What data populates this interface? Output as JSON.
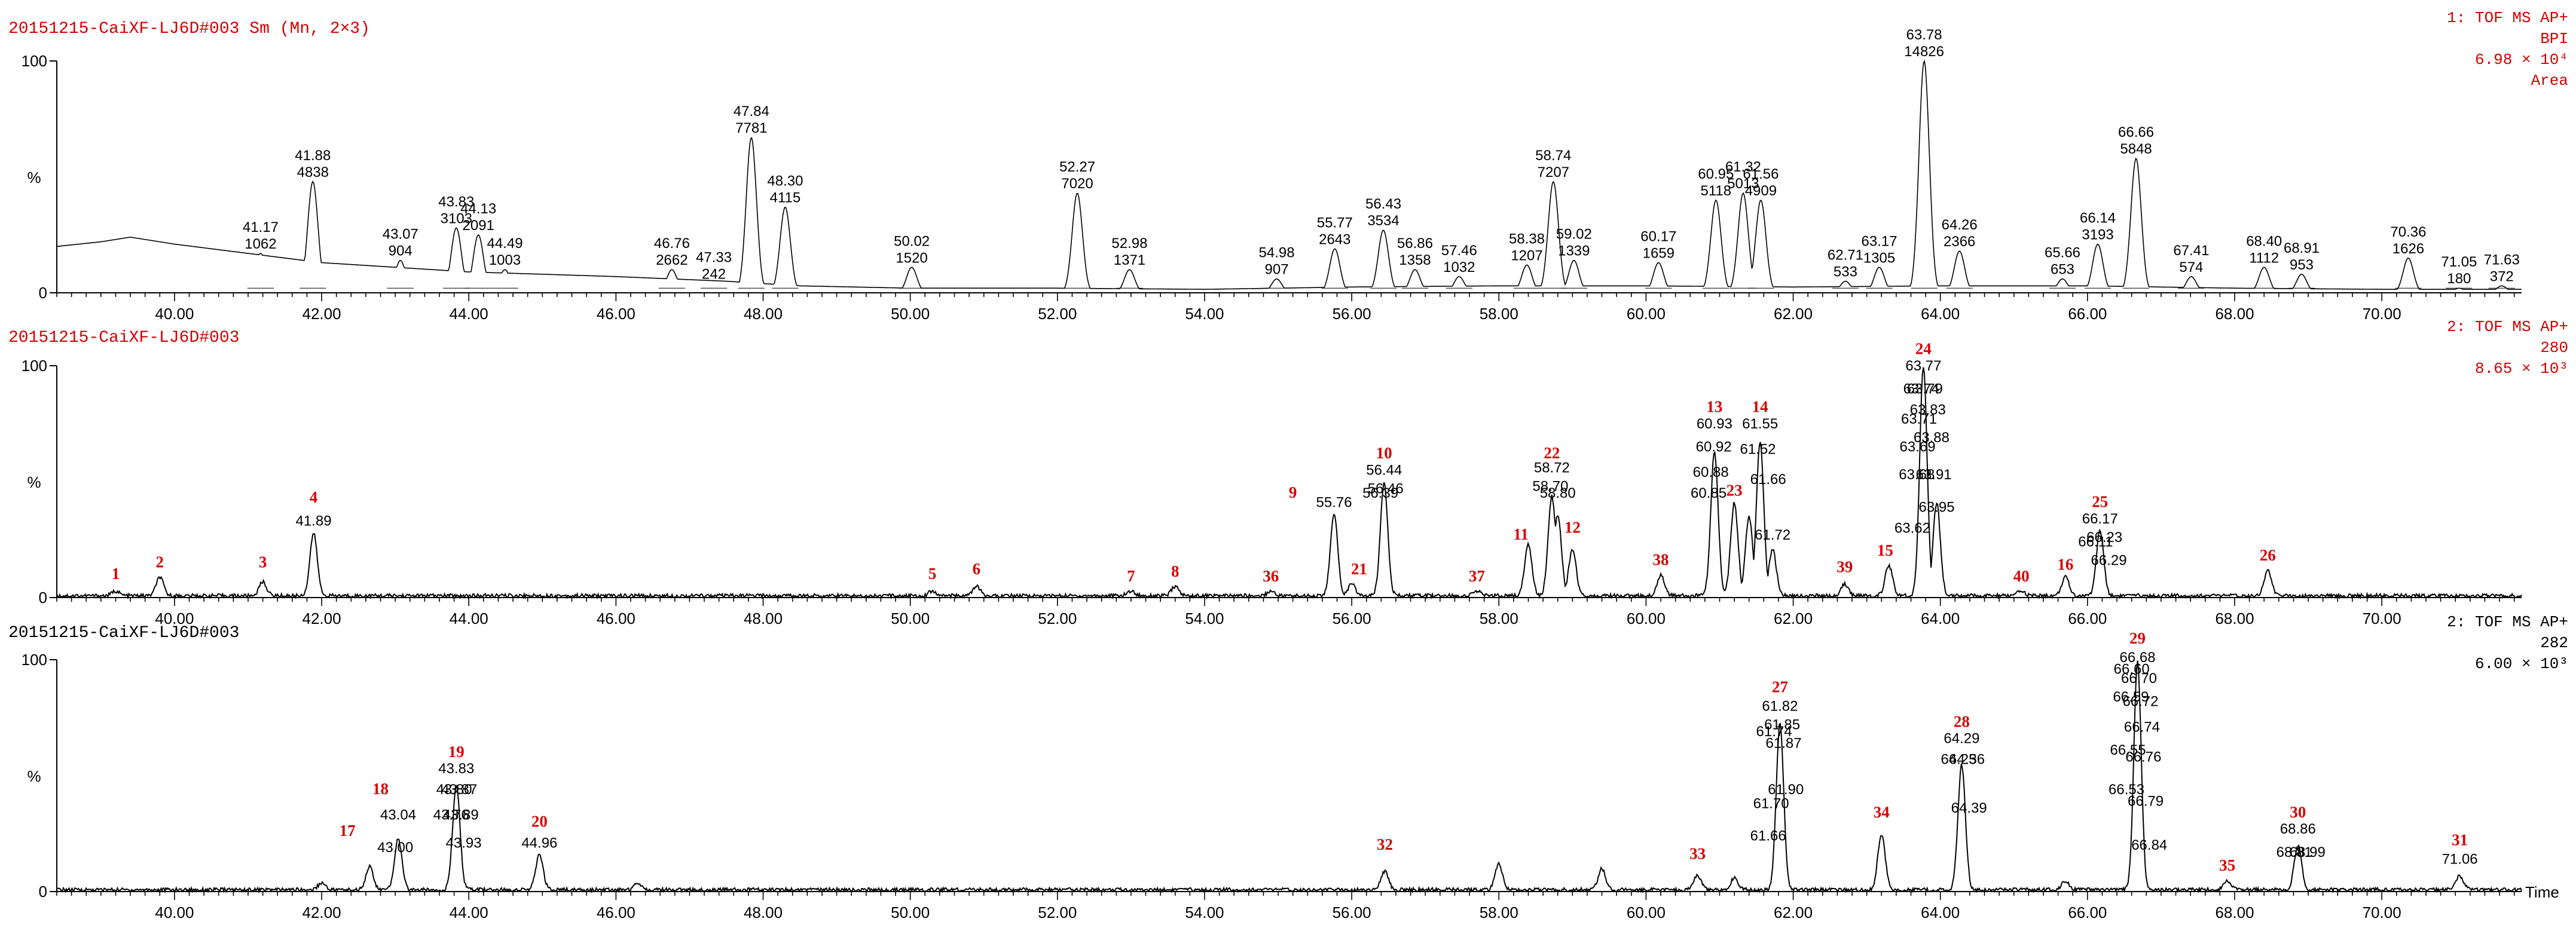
{
  "chart_data": [
    {
      "type": "line",
      "title_left": "20151215-CaiXF-LJ6D#003 Sm (Mn, 2×3)",
      "title_right": [
        "1: TOF MS AP+",
        "BPI",
        "6.98 × 10⁴",
        "Area"
      ],
      "ylabel": "%",
      "y_ticks": [
        "100",
        "0"
      ],
      "xlim": [
        38.4,
        71.9
      ],
      "ylim": [
        0,
        100
      ],
      "x_ticks": [
        "40.00",
        "42.00",
        "44.00",
        "46.00",
        "48.00",
        "50.00",
        "52.00",
        "54.00",
        "56.00",
        "58.00",
        "60.00",
        "62.00",
        "64.00",
        "66.00",
        "68.00",
        "70.00"
      ],
      "peaks": [
        {
          "rt": "41.17",
          "area": "1062",
          "x": 41.17,
          "y": 17
        },
        {
          "rt": "41.88",
          "area": "4838",
          "x": 41.88,
          "y": 48
        },
        {
          "rt": "43.07",
          "area": "904",
          "x": 43.07,
          "y": 14
        },
        {
          "rt": "43.83",
          "area": "3103",
          "x": 43.83,
          "y": 28
        },
        {
          "rt": "44.13",
          "area": "2091",
          "x": 44.13,
          "y": 25
        },
        {
          "rt": "44.49",
          "area": "1003",
          "x": 44.49,
          "y": 10
        },
        {
          "rt": "46.76",
          "area": "2662",
          "x": 46.76,
          "y": 10
        },
        {
          "rt": "47.33",
          "area": "242",
          "x": 47.33,
          "y": 4
        },
        {
          "rt": "47.84",
          "area": "7781",
          "x": 47.84,
          "y": 67
        },
        {
          "rt": "48.30",
          "area": "4115",
          "x": 48.3,
          "y": 37
        },
        {
          "rt": "50.02",
          "area": "1520",
          "x": 50.02,
          "y": 11
        },
        {
          "rt": "52.27",
          "area": "7020",
          "x": 52.27,
          "y": 43
        },
        {
          "rt": "52.98",
          "area": "1371",
          "x": 52.98,
          "y": 10
        },
        {
          "rt": "54.98",
          "area": "907",
          "x": 54.98,
          "y": 6
        },
        {
          "rt": "55.77",
          "area": "2643",
          "x": 55.77,
          "y": 19
        },
        {
          "rt": "56.43",
          "area": "3534",
          "x": 56.43,
          "y": 27
        },
        {
          "rt": "56.86",
          "area": "1358",
          "x": 56.86,
          "y": 10
        },
        {
          "rt": "57.46",
          "area": "1032",
          "x": 57.46,
          "y": 7
        },
        {
          "rt": "58.38",
          "area": "1207",
          "x": 58.38,
          "y": 12
        },
        {
          "rt": "58.74",
          "area": "7207",
          "x": 58.74,
          "y": 48
        },
        {
          "rt": "59.02",
          "area": "1339",
          "x": 59.02,
          "y": 14
        },
        {
          "rt": "60.17",
          "area": "1659",
          "x": 60.17,
          "y": 13
        },
        {
          "rt": "60.95",
          "area": "5118",
          "x": 60.95,
          "y": 40
        },
        {
          "rt": "61.32",
          "area": "5013",
          "x": 61.32,
          "y": 43
        },
        {
          "rt": "61.56",
          "area": "4909",
          "x": 61.56,
          "y": 40
        },
        {
          "rt": "62.71",
          "area": "533",
          "x": 62.71,
          "y": 5
        },
        {
          "rt": "63.17",
          "area": "1305",
          "x": 63.17,
          "y": 11
        },
        {
          "rt": "63.78",
          "area": "14826",
          "x": 63.78,
          "y": 100
        },
        {
          "rt": "64.26",
          "area": "2366",
          "x": 64.26,
          "y": 18
        },
        {
          "rt": "65.66",
          "area": "653",
          "x": 65.66,
          "y": 6
        },
        {
          "rt": "66.14",
          "area": "3193",
          "x": 66.14,
          "y": 21
        },
        {
          "rt": "66.66",
          "area": "5848",
          "x": 66.66,
          "y": 58
        },
        {
          "rt": "67.41",
          "area": "574",
          "x": 67.41,
          "y": 7
        },
        {
          "rt": "68.40",
          "area": "1112",
          "x": 68.4,
          "y": 11
        },
        {
          "rt": "68.91",
          "area": "953",
          "x": 68.91,
          "y": 8
        },
        {
          "rt": "70.36",
          "area": "1626",
          "x": 70.36,
          "y": 15
        },
        {
          "rt": "71.05",
          "area": "180",
          "x": 71.05,
          "y": 2
        },
        {
          "rt": "71.63",
          "area": "372",
          "x": 71.63,
          "y": 3
        }
      ],
      "baseline": [
        [
          38.4,
          20
        ],
        [
          39.0,
          22
        ],
        [
          39.4,
          24
        ],
        [
          40.0,
          21
        ],
        [
          41.0,
          17
        ],
        [
          42.0,
          13
        ],
        [
          44.0,
          9
        ],
        [
          46.0,
          7
        ],
        [
          47.5,
          5
        ],
        [
          48.5,
          3
        ],
        [
          50.0,
          2
        ],
        [
          52.0,
          2
        ],
        [
          54.0,
          1.5
        ],
        [
          56.0,
          2.5
        ],
        [
          58.0,
          3
        ],
        [
          60.0,
          3
        ],
        [
          62.0,
          2.5
        ],
        [
          64.0,
          3
        ],
        [
          66.0,
          3
        ],
        [
          68.0,
          2
        ],
        [
          70.0,
          1.5
        ],
        [
          71.9,
          1.5
        ]
      ]
    },
    {
      "type": "line",
      "title_left": "20151215-CaiXF-LJ6D#003",
      "title_right": [
        "2: TOF MS AP+",
        "280",
        "8.65 × 10³"
      ],
      "ylabel": "%",
      "y_ticks": [
        "100",
        "0"
      ],
      "xlim": [
        38.4,
        71.9
      ],
      "ylim": [
        0,
        100
      ],
      "x_ticks": [
        "40.00",
        "42.00",
        "44.00",
        "46.00",
        "48.00",
        "50.00",
        "52.00",
        "54.00",
        "56.00",
        "58.00",
        "60.00",
        "62.00",
        "64.00",
        "66.00",
        "68.00",
        "70.00"
      ],
      "peaks": [
        {
          "x": 39.2,
          "y": 2
        },
        {
          "x": 39.8,
          "y": 8
        },
        {
          "x": 41.2,
          "y": 6
        },
        {
          "x": 41.89,
          "y": 27
        },
        {
          "x": 50.3,
          "y": 2
        },
        {
          "x": 50.9,
          "y": 4
        },
        {
          "x": 53.0,
          "y": 2
        },
        {
          "x": 53.6,
          "y": 4
        },
        {
          "x": 54.9,
          "y": 2
        },
        {
          "x": 55.76,
          "y": 35
        },
        {
          "x": 56.0,
          "y": 5
        },
        {
          "x": 56.44,
          "y": 49
        },
        {
          "x": 57.7,
          "y": 2
        },
        {
          "x": 58.4,
          "y": 22
        },
        {
          "x": 58.72,
          "y": 43
        },
        {
          "x": 58.8,
          "y": 35
        },
        {
          "x": 59.0,
          "y": 20
        },
        {
          "x": 60.2,
          "y": 9
        },
        {
          "x": 60.93,
          "y": 62
        },
        {
          "x": 61.2,
          "y": 40
        },
        {
          "x": 61.4,
          "y": 34
        },
        {
          "x": 61.55,
          "y": 66
        },
        {
          "x": 61.72,
          "y": 20
        },
        {
          "x": 62.7,
          "y": 5
        },
        {
          "x": 63.3,
          "y": 13
        },
        {
          "x": 63.77,
          "y": 99
        },
        {
          "x": 63.95,
          "y": 40
        },
        {
          "x": 65.1,
          "y": 2
        },
        {
          "x": 65.7,
          "y": 8
        },
        {
          "x": 66.17,
          "y": 28
        },
        {
          "x": 68.45,
          "y": 11
        }
      ],
      "labels": [
        {
          "text": "41.89",
          "x": 41.89,
          "y": 31
        },
        {
          "text": "55.76",
          "x": 55.76,
          "y": 39
        },
        {
          "text": "56.39",
          "x": 56.39,
          "y": 43
        },
        {
          "text": "56.44",
          "x": 56.44,
          "y": 53
        },
        {
          "text": "56.46",
          "x": 56.46,
          "y": 45
        },
        {
          "text": "58.70",
          "x": 58.7,
          "y": 46
        },
        {
          "text": "58.72",
          "x": 58.72,
          "y": 54
        },
        {
          "text": "58.80",
          "x": 58.8,
          "y": 43
        },
        {
          "text": "60.85",
          "x": 60.85,
          "y": 43
        },
        {
          "text": "60.88",
          "x": 60.88,
          "y": 52
        },
        {
          "text": "60.92",
          "x": 60.92,
          "y": 63
        },
        {
          "text": "60.93",
          "x": 60.93,
          "y": 73
        },
        {
          "text": "61.52",
          "x": 61.52,
          "y": 62
        },
        {
          "text": "61.55",
          "x": 61.55,
          "y": 73
        },
        {
          "text": "61.66",
          "x": 61.66,
          "y": 49
        },
        {
          "text": "61.72",
          "x": 61.72,
          "y": 25
        },
        {
          "text": "63.62",
          "x": 63.62,
          "y": 28
        },
        {
          "text": "63.68",
          "x": 63.68,
          "y": 51
        },
        {
          "text": "63.69",
          "x": 63.69,
          "y": 63
        },
        {
          "text": "63.71",
          "x": 63.71,
          "y": 75
        },
        {
          "text": "63.74",
          "x": 63.74,
          "y": 88
        },
        {
          "text": "63.77",
          "x": 63.77,
          "y": 98
        },
        {
          "text": "63.79",
          "x": 63.79,
          "y": 88
        },
        {
          "text": "63.83",
          "x": 63.83,
          "y": 79
        },
        {
          "text": "63.88",
          "x": 63.88,
          "y": 67
        },
        {
          "text": "63.91",
          "x": 63.91,
          "y": 51
        },
        {
          "text": "63.95",
          "x": 63.95,
          "y": 37
        },
        {
          "text": "66.11",
          "x": 66.11,
          "y": 22
        },
        {
          "text": "66.17",
          "x": 66.17,
          "y": 32
        },
        {
          "text": "66.23",
          "x": 66.23,
          "y": 24
        },
        {
          "text": "66.29",
          "x": 66.29,
          "y": 14
        }
      ],
      "compound_numbers": [
        {
          "text": "1",
          "x": 39.2,
          "y": 8
        },
        {
          "text": "2",
          "x": 39.8,
          "y": 13
        },
        {
          "text": "3",
          "x": 41.2,
          "y": 13
        },
        {
          "text": "4",
          "x": 41.89,
          "y": 41
        },
        {
          "text": "5",
          "x": 50.3,
          "y": 8
        },
        {
          "text": "6",
          "x": 50.9,
          "y": 10
        },
        {
          "text": "7",
          "x": 53.0,
          "y": 7
        },
        {
          "text": "8",
          "x": 53.6,
          "y": 9
        },
        {
          "text": "36",
          "x": 54.9,
          "y": 7
        },
        {
          "text": "9",
          "x": 55.2,
          "y": 43
        },
        {
          "text": "21",
          "x": 56.1,
          "y": 10
        },
        {
          "text": "10",
          "x": 56.44,
          "y": 60
        },
        {
          "text": "37",
          "x": 57.7,
          "y": 7
        },
        {
          "text": "11",
          "x": 58.3,
          "y": 25
        },
        {
          "text": "22",
          "x": 58.72,
          "y": 60
        },
        {
          "text": "12",
          "x": 59.0,
          "y": 28
        },
        {
          "text": "38",
          "x": 60.2,
          "y": 14
        },
        {
          "text": "13",
          "x": 60.93,
          "y": 80
        },
        {
          "text": "14",
          "x": 61.55,
          "y": 80
        },
        {
          "text": "23",
          "x": 61.2,
          "y": 44
        },
        {
          "text": "39",
          "x": 62.7,
          "y": 11
        },
        {
          "text": "15",
          "x": 63.25,
          "y": 18
        },
        {
          "text": "24",
          "x": 63.77,
          "y": 105
        },
        {
          "text": "40",
          "x": 65.1,
          "y": 7
        },
        {
          "text": "16",
          "x": 65.7,
          "y": 12
        },
        {
          "text": "25",
          "x": 66.17,
          "y": 39
        },
        {
          "text": "26",
          "x": 68.45,
          "y": 16
        }
      ]
    },
    {
      "type": "line",
      "title_left": "20151215-CaiXF-LJ6D#003",
      "title_right": [
        "2: TOF MS AP+",
        "282",
        "6.00 × 10³"
      ],
      "ylabel": "%",
      "y_ticks": [
        "100",
        "0"
      ],
      "xlim": [
        38.4,
        71.9
      ],
      "ylim": [
        0,
        100
      ],
      "x_unit": "Time",
      "x_ticks": [
        "40.00",
        "42.00",
        "44.00",
        "46.00",
        "48.00",
        "50.00",
        "52.00",
        "54.00",
        "56.00",
        "58.00",
        "60.00",
        "62.00",
        "64.00",
        "66.00",
        "68.00",
        "70.00"
      ],
      "peaks": [
        {
          "x": 42.0,
          "y": 3
        },
        {
          "x": 42.65,
          "y": 10
        },
        {
          "x": 43.04,
          "y": 22
        },
        {
          "x": 43.83,
          "y": 45
        },
        {
          "x": 44.96,
          "y": 15
        },
        {
          "x": 46.3,
          "y": 3
        },
        {
          "x": 56.45,
          "y": 8
        },
        {
          "x": 58.0,
          "y": 11
        },
        {
          "x": 59.4,
          "y": 9
        },
        {
          "x": 60.7,
          "y": 6
        },
        {
          "x": 61.2,
          "y": 5
        },
        {
          "x": 61.82,
          "y": 72
        },
        {
          "x": 63.2,
          "y": 24
        },
        {
          "x": 64.29,
          "y": 54
        },
        {
          "x": 65.7,
          "y": 4
        },
        {
          "x": 66.68,
          "y": 98
        },
        {
          "x": 67.9,
          "y": 4
        },
        {
          "x": 68.86,
          "y": 19
        },
        {
          "x": 71.06,
          "y": 6
        }
      ],
      "labels": [
        {
          "text": "43.00",
          "x": 43.0,
          "y": 17
        },
        {
          "text": "43.04",
          "x": 43.04,
          "y": 31
        },
        {
          "text": "43.76",
          "x": 43.76,
          "y": 31
        },
        {
          "text": "43.80",
          "x": 43.8,
          "y": 42
        },
        {
          "text": "43.83",
          "x": 43.83,
          "y": 51
        },
        {
          "text": "43.87",
          "x": 43.87,
          "y": 42
        },
        {
          "text": "43.89",
          "x": 43.89,
          "y": 31
        },
        {
          "text": "43.93",
          "x": 43.93,
          "y": 19
        },
        {
          "text": "44.96",
          "x": 44.96,
          "y": 19
        },
        {
          "text": "61.66",
          "x": 61.66,
          "y": 22
        },
        {
          "text": "61.70",
          "x": 61.7,
          "y": 36
        },
        {
          "text": "61.74",
          "x": 61.74,
          "y": 67
        },
        {
          "text": "61.82",
          "x": 61.82,
          "y": 78
        },
        {
          "text": "61.85",
          "x": 61.85,
          "y": 70
        },
        {
          "text": "61.87",
          "x": 61.87,
          "y": 62
        },
        {
          "text": "61.90",
          "x": 61.9,
          "y": 42
        },
        {
          "text": "64.25",
          "x": 64.25,
          "y": 55
        },
        {
          "text": "64.29",
          "x": 64.29,
          "y": 64
        },
        {
          "text": "64.36",
          "x": 64.36,
          "y": 55
        },
        {
          "text": "64.39",
          "x": 64.39,
          "y": 34
        },
        {
          "text": "66.53",
          "x": 66.53,
          "y": 42
        },
        {
          "text": "66.55",
          "x": 66.55,
          "y": 59
        },
        {
          "text": "66.59",
          "x": 66.59,
          "y": 82
        },
        {
          "text": "66.60",
          "x": 66.6,
          "y": 94
        },
        {
          "text": "66.68",
          "x": 66.68,
          "y": 99
        },
        {
          "text": "66.70",
          "x": 66.7,
          "y": 90
        },
        {
          "text": "66.72",
          "x": 66.72,
          "y": 80
        },
        {
          "text": "66.74",
          "x": 66.74,
          "y": 69
        },
        {
          "text": "66.76",
          "x": 66.76,
          "y": 56
        },
        {
          "text": "66.79",
          "x": 66.79,
          "y": 37
        },
        {
          "text": "66.84",
          "x": 66.84,
          "y": 18
        },
        {
          "text": "68.81",
          "x": 68.81,
          "y": 15
        },
        {
          "text": "68.86",
          "x": 68.86,
          "y": 25
        },
        {
          "text": "68.99",
          "x": 68.99,
          "y": 15
        },
        {
          "text": "71.06",
          "x": 71.06,
          "y": 12
        }
      ],
      "compound_numbers": [
        {
          "text": "17",
          "x": 42.35,
          "y": 24
        },
        {
          "text": "18",
          "x": 42.8,
          "y": 42
        },
        {
          "text": "19",
          "x": 43.83,
          "y": 58
        },
        {
          "text": "20",
          "x": 44.96,
          "y": 28
        },
        {
          "text": "32",
          "x": 56.45,
          "y": 18
        },
        {
          "text": "33",
          "x": 60.7,
          "y": 14
        },
        {
          "text": "27",
          "x": 61.82,
          "y": 86
        },
        {
          "text": "34",
          "x": 63.2,
          "y": 32
        },
        {
          "text": "28",
          "x": 64.29,
          "y": 71
        },
        {
          "text": "29",
          "x": 66.68,
          "y": 107
        },
        {
          "text": "35",
          "x": 67.9,
          "y": 9
        },
        {
          "text": "30",
          "x": 68.86,
          "y": 32
        },
        {
          "text": "31",
          "x": 71.06,
          "y": 20
        }
      ]
    }
  ],
  "colors": {
    "title_red": "#d40000",
    "compound_red": "#d80000",
    "trace": "#000000",
    "axis": "#000000",
    "background": "#ffffff"
  }
}
